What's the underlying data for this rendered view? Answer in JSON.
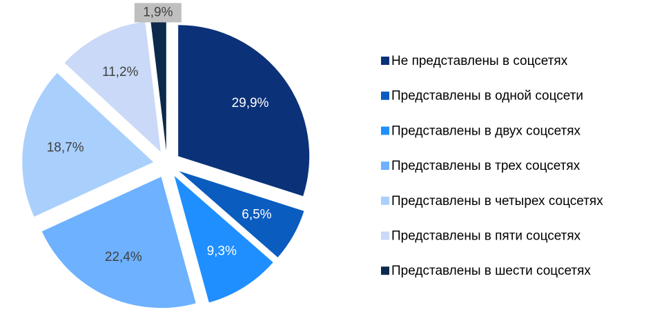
{
  "chart_data": {
    "type": "pie",
    "categories": [
      "Не представлены в соцсетях",
      "Представлены в одной соцсети",
      "Представлены в двух соцсетях",
      "Представлены в трех соцсетях",
      "Представлены в четырех соцсетях",
      "Представлены в пяти соцсетях",
      "Представлены в шести соцсетях"
    ],
    "values": [
      29.9,
      6.5,
      9.3,
      22.4,
      18.7,
      11.2,
      1.9
    ],
    "value_labels": [
      "29,9%",
      "6,5%",
      "9,3%",
      "22,4%",
      "18,7%",
      "11,2%",
      "1,9%"
    ],
    "colors": [
      "#0b3278",
      "#0a5cbf",
      "#1f8fff",
      "#6db1ff",
      "#a9cffd",
      "#c9d9f7",
      "#0c2a4b"
    ],
    "legend": "right"
  }
}
